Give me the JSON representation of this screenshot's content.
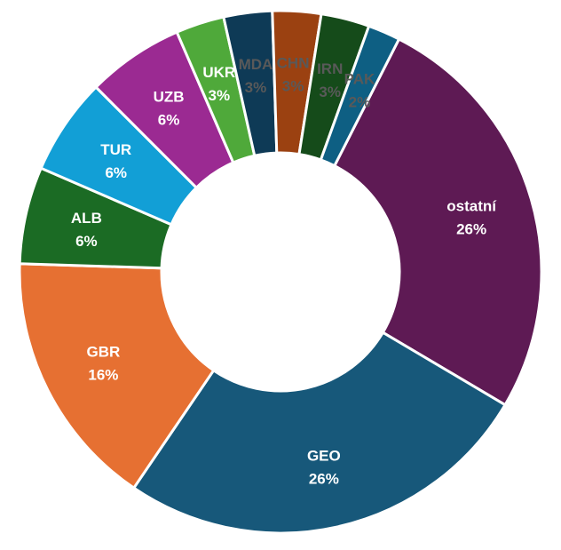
{
  "chart_data": {
    "type": "pie",
    "donut": true,
    "title": "",
    "legend": "none",
    "slices": [
      {
        "label": "ostatní",
        "pct_text": "26%",
        "value": 26,
        "color": "#5e1a54",
        "label_color": "white"
      },
      {
        "label": "GEO",
        "pct_text": "26%",
        "value": 26,
        "color": "#17587a",
        "label_color": "white"
      },
      {
        "label": "GBR",
        "pct_text": "16%",
        "value": 16,
        "color": "#e67032",
        "label_color": "white"
      },
      {
        "label": "ALB",
        "pct_text": "6%",
        "value": 6,
        "color": "#1b6b24",
        "label_color": "white"
      },
      {
        "label": "TUR",
        "pct_text": "6%",
        "value": 6,
        "color": "#129fd6",
        "label_color": "white"
      },
      {
        "label": "UZB",
        "pct_text": "6%",
        "value": 6,
        "color": "#9b2a92",
        "label_color": "white"
      },
      {
        "label": "UKR",
        "pct_text": "3%",
        "value": 3,
        "color": "#4fa93a",
        "label_color": "white"
      },
      {
        "label": "MDA",
        "pct_text": "3%",
        "value": 3,
        "color": "#0e3a56",
        "label_color": "dark"
      },
      {
        "label": "CHN",
        "pct_text": "3%",
        "value": 3,
        "color": "#9b4111",
        "label_color": "dark"
      },
      {
        "label": "IRN",
        "pct_text": "3%",
        "value": 3,
        "color": "#154b1a",
        "label_color": "dark"
      },
      {
        "label": "PAK",
        "pct_text": "2%",
        "value": 2,
        "color": "#0e5f83",
        "label_color": "dark"
      }
    ]
  }
}
